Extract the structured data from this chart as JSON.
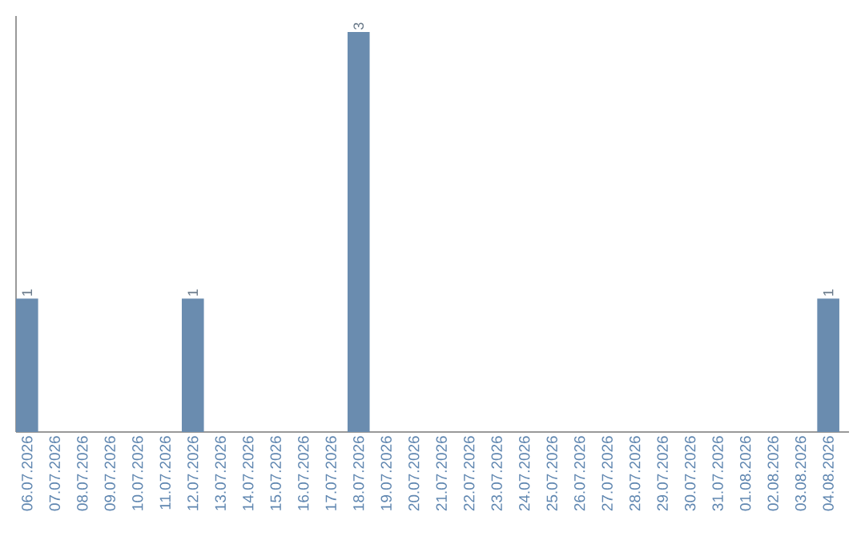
{
  "chart_data": {
    "type": "bar",
    "categories": [
      "06.07.2026",
      "07.07.2026",
      "08.07.2026",
      "09.07.2026",
      "10.07.2026",
      "11.07.2026",
      "12.07.2026",
      "13.07.2026",
      "14.07.2026",
      "15.07.2026",
      "16.07.2026",
      "17.07.2026",
      "18.07.2026",
      "19.07.2026",
      "20.07.2026",
      "21.07.2026",
      "22.07.2026",
      "23.07.2026",
      "24.07.2026",
      "25.07.2026",
      "26.07.2026",
      "27.07.2026",
      "28.07.2026",
      "29.07.2026",
      "30.07.2026",
      "31.07.2026",
      "01.08.2026",
      "02.08.2026",
      "03.08.2026",
      "04.08.2026"
    ],
    "values": [
      1,
      0,
      0,
      0,
      0,
      0,
      1,
      0,
      0,
      0,
      0,
      0,
      3,
      0,
      0,
      0,
      0,
      0,
      0,
      0,
      0,
      0,
      0,
      0,
      0,
      0,
      0,
      0,
      0,
      1
    ],
    "value_labels": [
      "1",
      null,
      null,
      null,
      null,
      null,
      "1",
      null,
      null,
      null,
      null,
      null,
      "3",
      null,
      null,
      null,
      null,
      null,
      null,
      null,
      null,
      null,
      null,
      null,
      null,
      null,
      null,
      null,
      null,
      "1"
    ],
    "color": "#6a8caf",
    "ylim": [
      0,
      3.12
    ]
  }
}
